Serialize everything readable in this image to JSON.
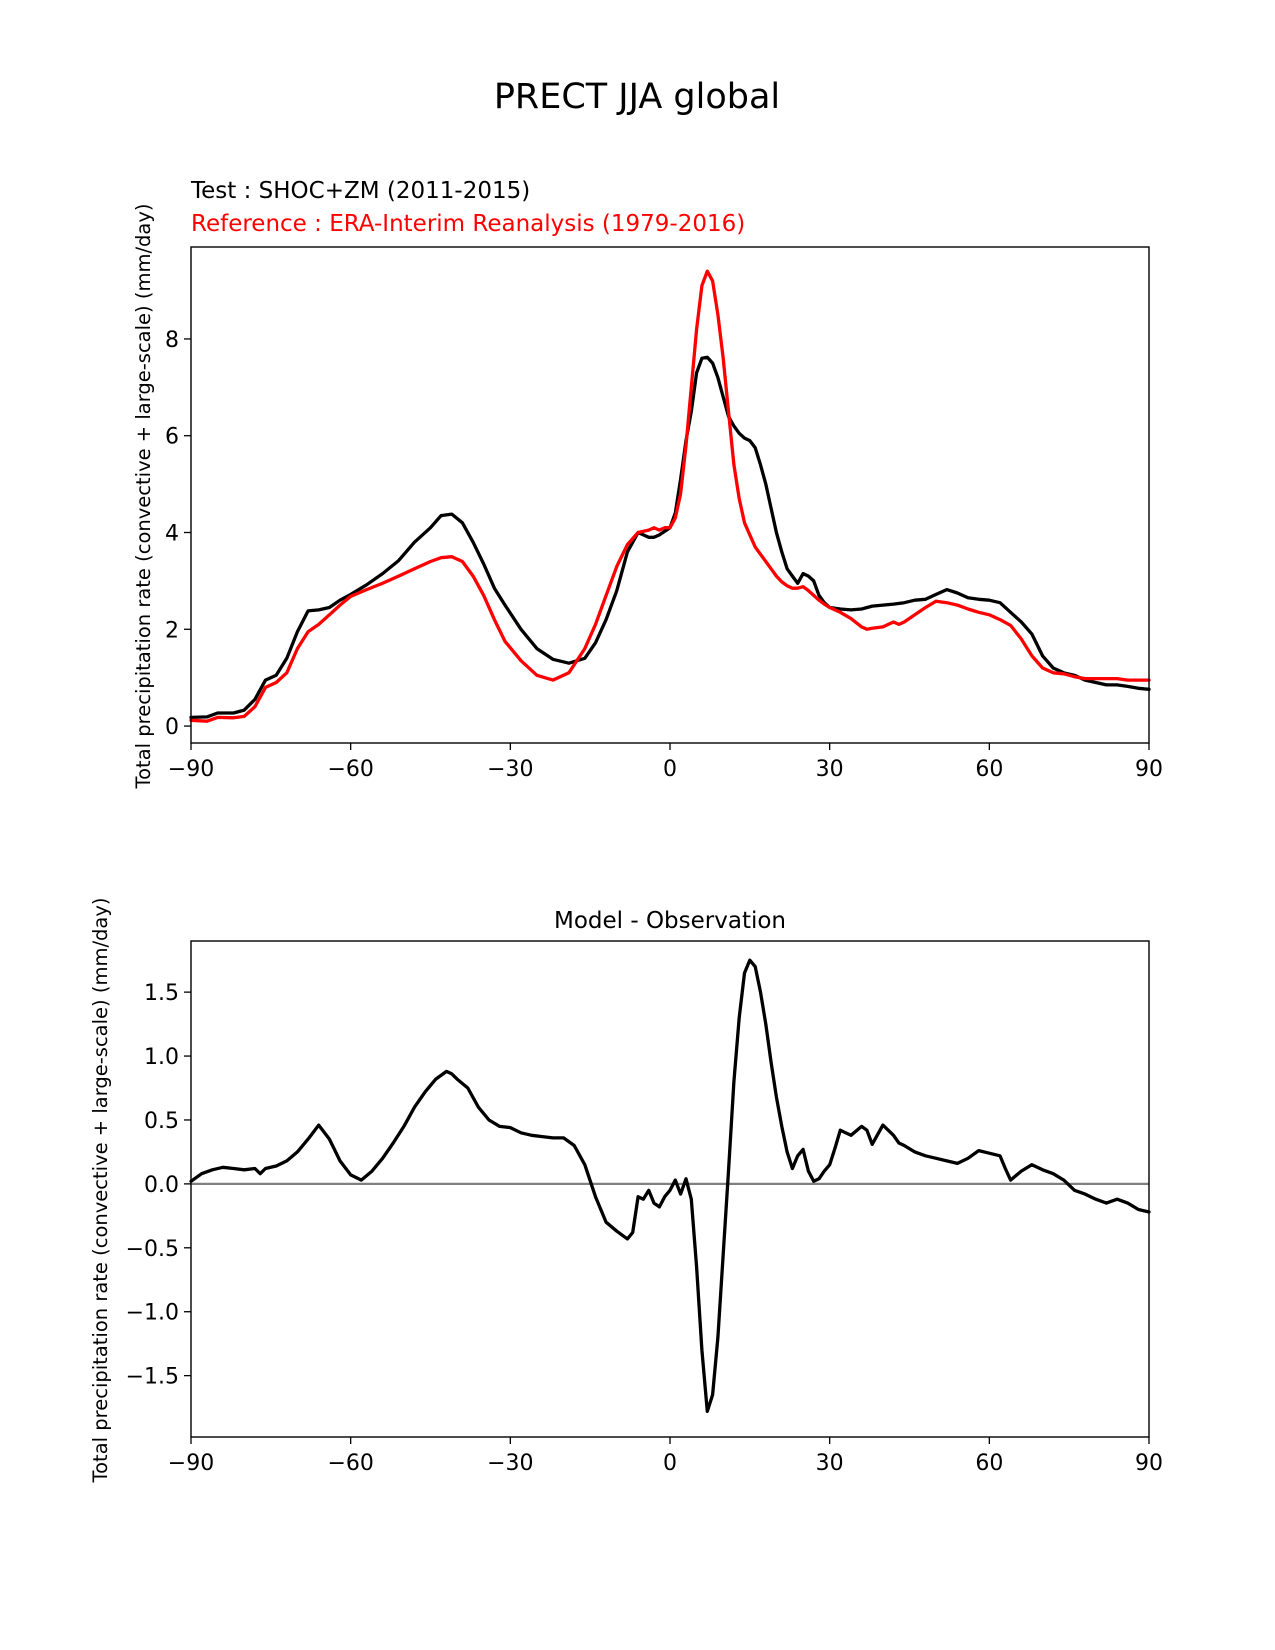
{
  "figure": {
    "title": "PRECT JJA global"
  },
  "chart_data": [
    {
      "type": "line",
      "panel": "top",
      "test_label": "Test : SHOC+ZM (2011-2015)",
      "reference_label": "Reference : ERA-Interim Reanalysis (1979-2016)",
      "ylabel": "Total precipitation rate (convective + large-scale) (mm/day)",
      "xlim": [
        -90,
        90
      ],
      "ylim": [
        -0.35,
        9.9
      ],
      "xticks": [
        -90,
        -60,
        -30,
        0,
        30,
        60,
        90
      ],
      "xtick_labels": [
        "−90",
        "−60",
        "−30",
        "0",
        "30",
        "60",
        "90"
      ],
      "yticks": [
        0,
        2,
        4,
        6,
        8
      ],
      "ytick_labels": [
        "0",
        "2",
        "4",
        "6",
        "8"
      ],
      "series": [
        {
          "name": "Test",
          "color": "#000000",
          "x": [
            -90,
            -87,
            -85,
            -82,
            -80,
            -78,
            -76,
            -74,
            -72,
            -70,
            -68,
            -66,
            -64,
            -62,
            -60,
            -57,
            -54,
            -51,
            -48,
            -45,
            -43,
            -41,
            -39,
            -37,
            -35,
            -33,
            -31,
            -28,
            -25,
            -22,
            -19,
            -16,
            -14,
            -12,
            -10,
            -8,
            -6,
            -4,
            -3,
            -2,
            0,
            1,
            2,
            3,
            4,
            5,
            6,
            7,
            8,
            9,
            10,
            11,
            12,
            13,
            14,
            15,
            16,
            17,
            18,
            19,
            20,
            21,
            22,
            23,
            24,
            25,
            26,
            27,
            28,
            29,
            30,
            32,
            34,
            36,
            38,
            40,
            42,
            44,
            46,
            48,
            50,
            52,
            54,
            56,
            58,
            60,
            62,
            64,
            66,
            68,
            70,
            72,
            74,
            76,
            78,
            80,
            82,
            84,
            86,
            88,
            90
          ],
          "values": [
            0.18,
            0.19,
            0.27,
            0.27,
            0.33,
            0.55,
            0.95,
            1.05,
            1.4,
            1.95,
            2.38,
            2.4,
            2.45,
            2.6,
            2.72,
            2.92,
            3.15,
            3.42,
            3.8,
            4.1,
            4.35,
            4.38,
            4.2,
            3.8,
            3.35,
            2.85,
            2.5,
            2.0,
            1.6,
            1.38,
            1.3,
            1.4,
            1.72,
            2.2,
            2.8,
            3.6,
            4.0,
            3.9,
            3.9,
            3.95,
            4.1,
            4.4,
            5.1,
            5.9,
            6.5,
            7.3,
            7.6,
            7.62,
            7.5,
            7.2,
            6.8,
            6.4,
            6.2,
            6.05,
            5.95,
            5.9,
            5.75,
            5.4,
            5.0,
            4.5,
            4.0,
            3.6,
            3.25,
            3.1,
            2.95,
            3.15,
            3.1,
            3.0,
            2.7,
            2.55,
            2.45,
            2.42,
            2.4,
            2.42,
            2.48,
            2.5,
            2.52,
            2.55,
            2.6,
            2.62,
            2.72,
            2.82,
            2.75,
            2.65,
            2.62,
            2.6,
            2.55,
            2.35,
            2.15,
            1.9,
            1.45,
            1.2,
            1.1,
            1.05,
            0.95,
            0.9,
            0.85,
            0.85,
            0.82,
            0.78,
            0.76
          ]
        },
        {
          "name": "Reference",
          "color": "#ff0000",
          "x": [
            -90,
            -87,
            -85,
            -82,
            -80,
            -78,
            -76,
            -74,
            -72,
            -70,
            -68,
            -66,
            -64,
            -62,
            -60,
            -57,
            -54,
            -51,
            -48,
            -45,
            -43,
            -41,
            -39,
            -37,
            -35,
            -33,
            -31,
            -28,
            -25,
            -22,
            -19,
            -16,
            -14,
            -12,
            -10,
            -8,
            -6,
            -4,
            -3,
            -2,
            -1,
            0,
            1,
            2,
            3,
            4,
            5,
            6,
            7,
            8,
            9,
            10,
            11,
            12,
            13,
            14,
            15,
            16,
            17,
            18,
            19,
            20,
            21,
            22,
            23,
            24,
            25,
            26,
            27,
            28,
            29,
            30,
            32,
            34,
            36,
            37,
            38,
            40,
            42,
            43,
            44,
            46,
            48,
            50,
            52,
            54,
            56,
            58,
            60,
            62,
            64,
            66,
            68,
            70,
            72,
            74,
            76,
            78,
            80,
            82,
            84,
            86,
            88,
            90
          ],
          "values": [
            0.12,
            0.1,
            0.18,
            0.17,
            0.2,
            0.4,
            0.8,
            0.9,
            1.1,
            1.6,
            1.95,
            2.1,
            2.3,
            2.5,
            2.68,
            2.82,
            2.95,
            3.1,
            3.25,
            3.4,
            3.48,
            3.5,
            3.4,
            3.1,
            2.7,
            2.2,
            1.75,
            1.35,
            1.05,
            0.95,
            1.1,
            1.6,
            2.1,
            2.7,
            3.3,
            3.75,
            4.0,
            4.05,
            4.1,
            4.05,
            4.1,
            4.1,
            4.3,
            4.8,
            5.8,
            7.0,
            8.2,
            9.1,
            9.4,
            9.2,
            8.5,
            7.6,
            6.5,
            5.4,
            4.7,
            4.2,
            3.95,
            3.7,
            3.55,
            3.4,
            3.25,
            3.1,
            2.98,
            2.9,
            2.85,
            2.85,
            2.88,
            2.8,
            2.7,
            2.6,
            2.52,
            2.45,
            2.35,
            2.22,
            2.05,
            2.0,
            2.02,
            2.05,
            2.15,
            2.1,
            2.15,
            2.3,
            2.45,
            2.58,
            2.55,
            2.5,
            2.42,
            2.35,
            2.3,
            2.2,
            2.08,
            1.8,
            1.45,
            1.2,
            1.1,
            1.08,
            1.02,
            0.98,
            0.98,
            0.98,
            0.98,
            0.95,
            0.95,
            0.95
          ]
        }
      ]
    },
    {
      "type": "line",
      "panel": "bottom",
      "title": "Model - Observation",
      "ylabel": "Total precipitation rate (convective + large-scale) (mm/day)",
      "xlim": [
        -90,
        90
      ],
      "ylim": [
        -1.98,
        1.9
      ],
      "xticks": [
        -90,
        -60,
        -30,
        0,
        30,
        60,
        90
      ],
      "xtick_labels": [
        "−90",
        "−60",
        "−30",
        "0",
        "30",
        "60",
        "90"
      ],
      "yticks": [
        1.5,
        1.0,
        0.5,
        0.0,
        -0.5,
        -1.0,
        -1.5
      ],
      "ytick_labels": [
        "1.5",
        "1.0",
        "0.5",
        "0.0",
        "−0.5",
        "−1.0",
        "−1.5"
      ],
      "zero_line_color": "#808080",
      "series": [
        {
          "name": "Model - Observation",
          "color": "#000000",
          "x": [
            -90,
            -88,
            -86,
            -84,
            -82,
            -80,
            -78,
            -77,
            -76,
            -74,
            -72,
            -70,
            -68,
            -66,
            -64,
            -62,
            -60,
            -58,
            -56,
            -54,
            -52,
            -50,
            -48,
            -46,
            -44,
            -42,
            -41,
            -40,
            -38,
            -36,
            -34,
            -32,
            -30,
            -28,
            -26,
            -24,
            -22,
            -20,
            -18,
            -16,
            -14,
            -12,
            -10,
            -8,
            -7,
            -6,
            -5,
            -4,
            -3,
            -2,
            -1,
            0,
            1,
            2,
            3,
            4,
            5,
            6,
            7,
            8,
            9,
            10,
            11,
            12,
            13,
            14,
            15,
            16,
            17,
            18,
            19,
            20,
            21,
            22,
            23,
            24,
            25,
            26,
            27,
            28,
            29,
            30,
            31,
            32,
            33,
            34,
            36,
            37,
            38,
            40,
            41,
            42,
            43,
            44,
            46,
            48,
            50,
            52,
            54,
            56,
            58,
            60,
            62,
            63,
            64,
            66,
            68,
            70,
            72,
            74,
            76,
            78,
            80,
            82,
            84,
            86,
            88,
            90
          ],
          "values": [
            0.02,
            0.08,
            0.11,
            0.13,
            0.12,
            0.11,
            0.12,
            0.08,
            0.12,
            0.14,
            0.18,
            0.25,
            0.35,
            0.46,
            0.35,
            0.18,
            0.07,
            0.03,
            0.1,
            0.2,
            0.32,
            0.45,
            0.6,
            0.72,
            0.82,
            0.88,
            0.86,
            0.82,
            0.75,
            0.6,
            0.5,
            0.45,
            0.44,
            0.4,
            0.38,
            0.37,
            0.36,
            0.36,
            0.3,
            0.15,
            -0.1,
            -0.3,
            -0.37,
            -0.43,
            -0.38,
            -0.1,
            -0.12,
            -0.05,
            -0.15,
            -0.18,
            -0.1,
            -0.05,
            0.03,
            -0.08,
            0.04,
            -0.12,
            -0.65,
            -1.3,
            -1.78,
            -1.65,
            -1.2,
            -0.55,
            0.1,
            0.8,
            1.3,
            1.65,
            1.75,
            1.7,
            1.5,
            1.25,
            0.95,
            0.68,
            0.45,
            0.25,
            0.12,
            0.22,
            0.27,
            0.1,
            0.02,
            0.04,
            0.1,
            0.15,
            0.28,
            0.42,
            0.4,
            0.38,
            0.45,
            0.42,
            0.31,
            0.46,
            0.42,
            0.38,
            0.32,
            0.3,
            0.25,
            0.22,
            0.2,
            0.18,
            0.16,
            0.2,
            0.26,
            0.24,
            0.22,
            0.12,
            0.03,
            0.1,
            0.15,
            0.11,
            0.08,
            0.03,
            -0.05,
            -0.08,
            -0.12,
            -0.15,
            -0.12,
            -0.15,
            -0.2,
            -0.22
          ]
        }
      ]
    }
  ]
}
